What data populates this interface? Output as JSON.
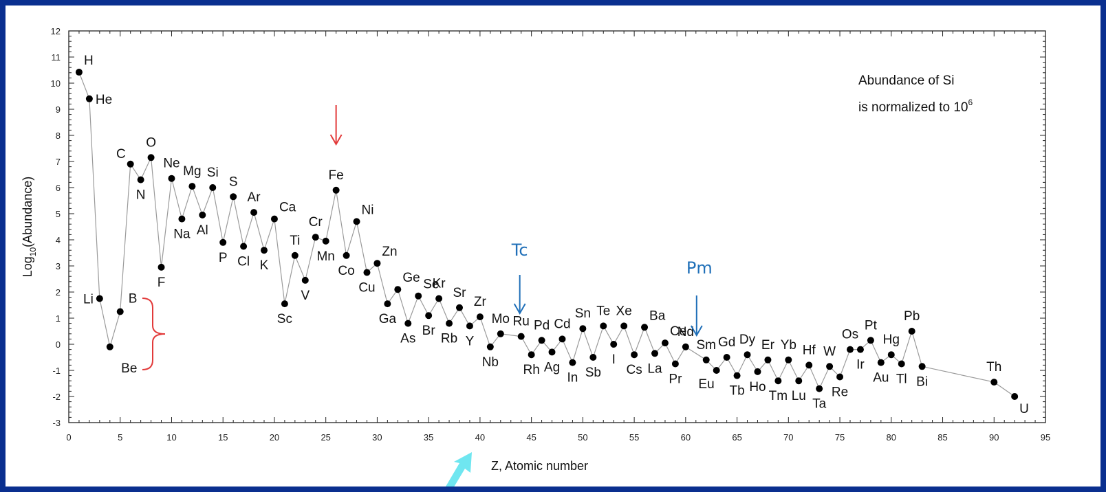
{
  "colors": {
    "background": "#0a2f8f",
    "line": "#9a9a9a",
    "points": "#000000",
    "red_marker": "#e23a3a",
    "blue_marker": "#1f6fb8",
    "cyan_marker": "#6fe6f0"
  },
  "chart_data": {
    "type": "line",
    "xlabel": "Z, Atomic number",
    "ylabel": "Log10(Abundance)",
    "xlim": [
      0,
      95
    ],
    "ylim": [
      -3,
      12
    ],
    "xticks": [
      "0",
      "5",
      "10",
      "15",
      "20",
      "25",
      "30",
      "35",
      "40",
      "45",
      "50",
      "55",
      "60",
      "65",
      "70",
      "75",
      "80",
      "85",
      "90",
      "95"
    ],
    "yticks": [
      "-3",
      "-2",
      "-1",
      "0",
      "1",
      "2",
      "3",
      "4",
      "5",
      "6",
      "7",
      "8",
      "9",
      "10",
      "11",
      "12"
    ],
    "grid": false,
    "note_lines": [
      "Abundance of Si",
      "is normalized to 10"
    ],
    "note_sup": "6",
    "points": [
      {
        "z": 1,
        "y": 10.42,
        "label": "H",
        "pos": "ne"
      },
      {
        "z": 2,
        "y": 9.4,
        "label": "He",
        "pos": "e"
      },
      {
        "z": 3,
        "y": 1.75,
        "label": "Li",
        "pos": "w"
      },
      {
        "z": 4,
        "y": -0.1,
        "label": "Be",
        "pos": "s_far"
      },
      {
        "z": 5,
        "y": 1.25,
        "label": "B",
        "pos": "ne_far"
      },
      {
        "z": 6,
        "y": 6.9,
        "label": "C",
        "pos": "nw"
      },
      {
        "z": 7,
        "y": 6.3,
        "label": "N",
        "pos": "s"
      },
      {
        "z": 8,
        "y": 7.15,
        "label": "O",
        "pos": "n"
      },
      {
        "z": 9,
        "y": 2.95,
        "label": "F",
        "pos": "s"
      },
      {
        "z": 10,
        "y": 6.35,
        "label": "Ne",
        "pos": "n"
      },
      {
        "z": 11,
        "y": 4.8,
        "label": "Na",
        "pos": "s"
      },
      {
        "z": 12,
        "y": 6.05,
        "label": "Mg",
        "pos": "n"
      },
      {
        "z": 13,
        "y": 4.95,
        "label": "Al",
        "pos": "s"
      },
      {
        "z": 14,
        "y": 6.0,
        "label": "Si",
        "pos": "n"
      },
      {
        "z": 15,
        "y": 3.9,
        "label": "P",
        "pos": "s"
      },
      {
        "z": 16,
        "y": 5.65,
        "label": "S",
        "pos": "n"
      },
      {
        "z": 17,
        "y": 3.75,
        "label": "Cl",
        "pos": "s"
      },
      {
        "z": 18,
        "y": 5.05,
        "label": "Ar",
        "pos": "n"
      },
      {
        "z": 19,
        "y": 3.6,
        "label": "K",
        "pos": "s"
      },
      {
        "z": 20,
        "y": 4.8,
        "label": "Ca",
        "pos": "ne"
      },
      {
        "z": 21,
        "y": 1.55,
        "label": "Sc",
        "pos": "s"
      },
      {
        "z": 22,
        "y": 3.4,
        "label": "Ti",
        "pos": "n"
      },
      {
        "z": 23,
        "y": 2.45,
        "label": "V",
        "pos": "s"
      },
      {
        "z": 24,
        "y": 4.1,
        "label": "Cr",
        "pos": "n"
      },
      {
        "z": 25,
        "y": 3.95,
        "label": "Mn",
        "pos": "s"
      },
      {
        "z": 26,
        "y": 5.9,
        "label": "Fe",
        "pos": "n"
      },
      {
        "z": 27,
        "y": 3.4,
        "label": "Co",
        "pos": "s"
      },
      {
        "z": 28,
        "y": 4.7,
        "label": "Ni",
        "pos": "ne"
      },
      {
        "z": 29,
        "y": 2.75,
        "label": "Cu",
        "pos": "s"
      },
      {
        "z": 30,
        "y": 3.1,
        "label": "Zn",
        "pos": "ne"
      },
      {
        "z": 31,
        "y": 1.55,
        "label": "Ga",
        "pos": "s"
      },
      {
        "z": 32,
        "y": 2.1,
        "label": "Ge",
        "pos": "ne"
      },
      {
        "z": 33,
        "y": 0.8,
        "label": "As",
        "pos": "s"
      },
      {
        "z": 34,
        "y": 1.85,
        "label": "Se",
        "pos": "ne"
      },
      {
        "z": 35,
        "y": 1.1,
        "label": "Br",
        "pos": "s"
      },
      {
        "z": 36,
        "y": 1.75,
        "label": "Kr",
        "pos": "n"
      },
      {
        "z": 37,
        "y": 0.8,
        "label": "Rb",
        "pos": "s"
      },
      {
        "z": 38,
        "y": 1.4,
        "label": "Sr",
        "pos": "n"
      },
      {
        "z": 39,
        "y": 0.7,
        "label": "Y",
        "pos": "s"
      },
      {
        "z": 40,
        "y": 1.05,
        "label": "Zr",
        "pos": "n"
      },
      {
        "z": 41,
        "y": -0.1,
        "label": "Nb",
        "pos": "s"
      },
      {
        "z": 42,
        "y": 0.4,
        "label": "Mo",
        "pos": "n"
      },
      {
        "z": 44,
        "y": 0.3,
        "label": "Ru",
        "pos": "n"
      },
      {
        "z": 45,
        "y": -0.4,
        "label": "Rh",
        "pos": "s"
      },
      {
        "z": 46,
        "y": 0.15,
        "label": "Pd",
        "pos": "n"
      },
      {
        "z": 47,
        "y": -0.3,
        "label": "Ag",
        "pos": "s"
      },
      {
        "z": 48,
        "y": 0.2,
        "label": "Cd",
        "pos": "n"
      },
      {
        "z": 49,
        "y": -0.7,
        "label": "In",
        "pos": "s"
      },
      {
        "z": 50,
        "y": 0.6,
        "label": "Sn",
        "pos": "n"
      },
      {
        "z": 51,
        "y": -0.5,
        "label": "Sb",
        "pos": "s"
      },
      {
        "z": 52,
        "y": 0.7,
        "label": "Te",
        "pos": "n"
      },
      {
        "z": 53,
        "y": 0.0,
        "label": "I",
        "pos": "s"
      },
      {
        "z": 54,
        "y": 0.7,
        "label": "Xe",
        "pos": "n"
      },
      {
        "z": 55,
        "y": -0.4,
        "label": "Cs",
        "pos": "s"
      },
      {
        "z": 56,
        "y": 0.65,
        "label": "Ba",
        "pos": "ne"
      },
      {
        "z": 57,
        "y": -0.35,
        "label": "La",
        "pos": "s"
      },
      {
        "z": 58,
        "y": 0.05,
        "label": "Ce",
        "pos": "ne"
      },
      {
        "z": 59,
        "y": -0.75,
        "label": "Pr",
        "pos": "s"
      },
      {
        "z": 60,
        "y": -0.1,
        "label": "Nd",
        "pos": "n"
      },
      {
        "z": 62,
        "y": -0.6,
        "label": "Sm",
        "pos": "n"
      },
      {
        "z": 63,
        "y": -1.0,
        "label": "Eu",
        "pos": "sw"
      },
      {
        "z": 64,
        "y": -0.5,
        "label": "Gd",
        "pos": "n"
      },
      {
        "z": 65,
        "y": -1.2,
        "label": "Tb",
        "pos": "s"
      },
      {
        "z": 66,
        "y": -0.4,
        "label": "Dy",
        "pos": "n"
      },
      {
        "z": 67,
        "y": -1.05,
        "label": "Ho",
        "pos": "s"
      },
      {
        "z": 68,
        "y": -0.6,
        "label": "Er",
        "pos": "n"
      },
      {
        "z": 69,
        "y": -1.4,
        "label": "Tm",
        "pos": "s"
      },
      {
        "z": 70,
        "y": -0.6,
        "label": "Yb",
        "pos": "n"
      },
      {
        "z": 71,
        "y": -1.4,
        "label": "Lu",
        "pos": "s"
      },
      {
        "z": 72,
        "y": -0.8,
        "label": "Hf",
        "pos": "n"
      },
      {
        "z": 73,
        "y": -1.7,
        "label": "Ta",
        "pos": "s"
      },
      {
        "z": 74,
        "y": -0.85,
        "label": "W",
        "pos": "n"
      },
      {
        "z": 75,
        "y": -1.25,
        "label": "Re",
        "pos": "s"
      },
      {
        "z": 76,
        "y": -0.2,
        "label": "Os",
        "pos": "n"
      },
      {
        "z": 77,
        "y": -0.2,
        "label": "Ir",
        "pos": "s"
      },
      {
        "z": 78,
        "y": 0.15,
        "label": "Pt",
        "pos": "n"
      },
      {
        "z": 79,
        "y": -0.7,
        "label": "Au",
        "pos": "s"
      },
      {
        "z": 80,
        "y": -0.4,
        "label": "Hg",
        "pos": "n"
      },
      {
        "z": 81,
        "y": -0.75,
        "label": "Tl",
        "pos": "s"
      },
      {
        "z": 82,
        "y": 0.5,
        "label": "Pb",
        "pos": "n"
      },
      {
        "z": 83,
        "y": -0.85,
        "label": "Bi",
        "pos": "s"
      },
      {
        "z": 90,
        "y": -1.45,
        "label": "Th",
        "pos": "n"
      },
      {
        "z": 92,
        "y": -2.0,
        "label": "U",
        "pos": "se"
      }
    ],
    "annotations": {
      "tc_label": "Tc",
      "pm_label": "Pm"
    }
  }
}
